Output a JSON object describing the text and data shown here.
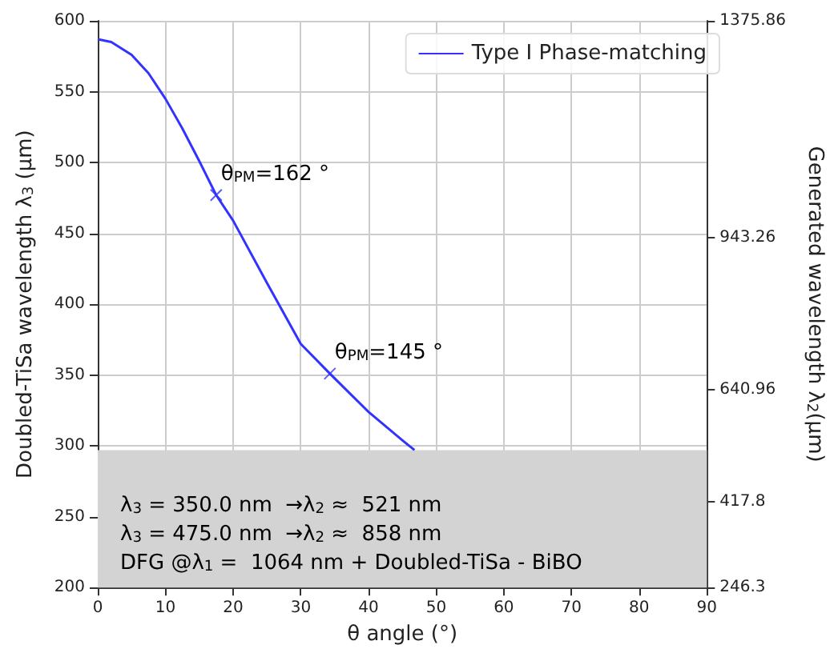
{
  "chart_data": {
    "type": "line",
    "xlabel": "θ angle (°)",
    "ylabel": "Doubled-TiSa wavelength λ$_{3}$ (μm)",
    "y2label": "Generated wavelength λ$_{2}$(μm)",
    "series": [
      {
        "name": "Type I Phase-matching",
        "color": "#3333ff",
        "x": [
          0,
          2,
          5,
          7.5,
          10,
          12.5,
          15,
          17.5,
          20,
          25,
          30,
          34.3,
          40,
          45,
          46.8
        ],
        "values": [
          587,
          585,
          576,
          563,
          545,
          524,
          501,
          477,
          459,
          415,
          372,
          351,
          324,
          304,
          297
        ]
      },
      {
        "type": "scatter",
        "color": "#3333ff",
        "marker": "cross",
        "x": [
          17.5,
          34.3
        ],
        "values": [
          477,
          351
        ]
      }
    ],
    "xlim": [
      0,
      90
    ],
    "xticks": [
      0,
      10,
      20,
      30,
      40,
      50,
      60,
      70,
      80,
      90
    ],
    "ylim": [
      200,
      600
    ],
    "yticks": [
      200,
      250,
      300,
      350,
      400,
      450,
      500,
      550,
      600
    ],
    "y2lim": [
      246.3,
      1375.86
    ],
    "y2ticks": [
      246.3,
      417.8,
      640.96,
      943.26,
      1375.86
    ],
    "bands": [
      {
        "axis": "y",
        "from": 200,
        "to": 297,
        "color": "#d3d3d3"
      }
    ],
    "annotations": [
      {
        "text": "θ$_{PM}$=162 °",
        "x": 17.5,
        "y": 477
      },
      {
        "text": "θ$_{PM}$=145 °",
        "x": 34.3,
        "y": 351
      },
      "λ$_{3}$ = 350.0 nm  →λ$_{2}$ ≈  521 nm",
      "λ$_{3}$ = 475.0 nm  →λ$_{2}$ ≈  858 nm",
      "DFG @λ$_{1}$ =  1064 nm + Doubled-TiSa - BiBO"
    ],
    "grid": true,
    "legend": "top right",
    "marker": "none",
    "line_style": "solid"
  }
}
